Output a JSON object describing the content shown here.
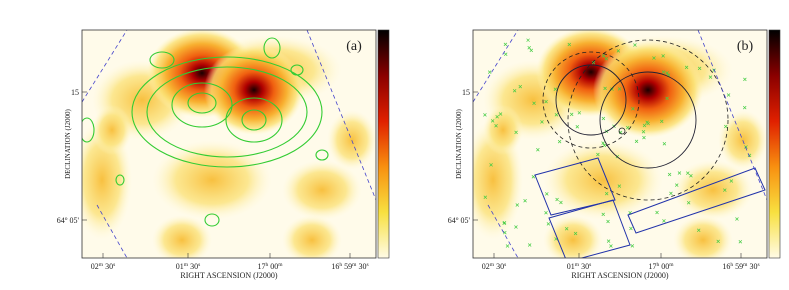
{
  "panels": [
    {
      "label": "(a)",
      "y_axis_label": "DECLINATION (J2000)",
      "x_axis_label": "RIGHT ASCENSION (J2000)",
      "y_ticks": [
        {
          "parts": [
            "15"
          ]
        },
        {
          "parts": [
            "64",
            "o",
            " 05'"
          ]
        }
      ],
      "x_ticks": [
        {
          "parts": [
            "02",
            "m",
            " 30",
            "s"
          ]
        },
        {
          "parts": [
            "01",
            "m",
            " 30",
            "s"
          ]
        },
        {
          "parts": [
            "17",
            "h",
            " 00",
            "m"
          ]
        },
        {
          "parts": [
            "16",
            "h",
            " 59",
            "m",
            " 30",
            "s"
          ]
        }
      ]
    },
    {
      "label": "(b)",
      "y_axis_label": "DECLINATION (J2000)",
      "x_axis_label": "RIGHT ASCENSION (J2000)",
      "y_ticks": [
        {
          "parts": [
            "15"
          ]
        },
        {
          "parts": [
            "64",
            "o",
            " 05'"
          ]
        }
      ],
      "x_ticks": [
        {
          "parts": [
            "02",
            "m",
            " 30",
            "s"
          ]
        },
        {
          "parts": [
            "01",
            "m",
            " 30",
            "s"
          ]
        },
        {
          "parts": [
            "17",
            "h",
            " 00",
            "m"
          ]
        },
        {
          "parts": [
            "16",
            "h",
            " 59",
            "m",
            " 30",
            "s"
          ]
        }
      ]
    }
  ]
}
